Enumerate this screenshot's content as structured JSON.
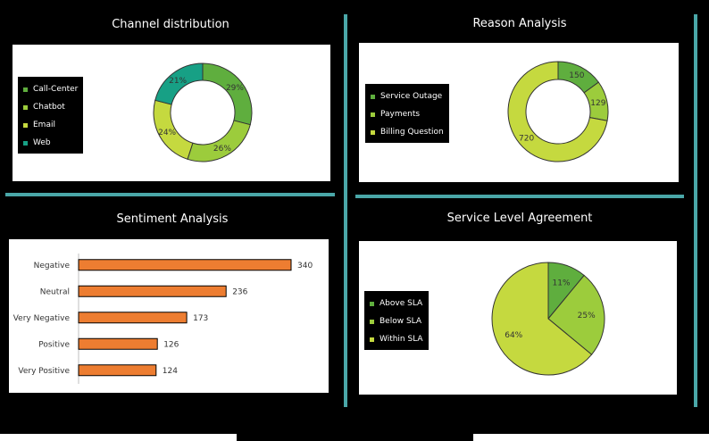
{
  "palette": {
    "background": "#000000",
    "divider": "#4aa7a8",
    "bar_fill": "#ed7d31",
    "green_dark": "#2e9e5b",
    "green_mid": "#5fae3e",
    "green_light": "#9ccc3c",
    "green_pale": "#c5d93f",
    "teal": "#17a085"
  },
  "chart_data": [
    {
      "type": "donut",
      "title": "Channel distribution",
      "legend_position": "left",
      "series": [
        {
          "name": "Call-Center",
          "value": 29,
          "label": "29%",
          "color": "#5fae3e"
        },
        {
          "name": "Chatbot",
          "value": 26,
          "label": "26%",
          "color": "#9ccc3c"
        },
        {
          "name": "Email",
          "value": 24,
          "label": "24%",
          "color": "#c5d93f"
        },
        {
          "name": "Web",
          "value": 21,
          "label": "21%",
          "color": "#17a085"
        }
      ]
    },
    {
      "type": "donut",
      "title": "Reason Analysis",
      "legend_position": "left",
      "series": [
        {
          "name": "Service Outage",
          "value": 150,
          "label": "150",
          "color": "#5fae3e"
        },
        {
          "name": "Payments",
          "value": 129,
          "label": "129",
          "color": "#9ccc3c"
        },
        {
          "name": "Billing Question",
          "value": 720,
          "label": "720",
          "color": "#c5d93f"
        }
      ]
    },
    {
      "type": "bar",
      "orientation": "horizontal",
      "title": "Sentiment Analysis",
      "categories": [
        "Negative",
        "Neutral",
        "Very Negative",
        "Positive",
        "Very Positive"
      ],
      "values": [
        340,
        236,
        173,
        126,
        124
      ],
      "xlim": [
        0,
        400
      ]
    },
    {
      "type": "pie",
      "title": "Service Level Agreement",
      "legend_position": "left",
      "series": [
        {
          "name": "Above SLA",
          "value": 11,
          "label": "11%",
          "color": "#5fae3e"
        },
        {
          "name": "Below SLA",
          "value": 25,
          "label": "25%",
          "color": "#9ccc3c"
        },
        {
          "name": "Within SLA",
          "value": 64,
          "label": "64%",
          "color": "#c5d93f"
        }
      ]
    }
  ]
}
